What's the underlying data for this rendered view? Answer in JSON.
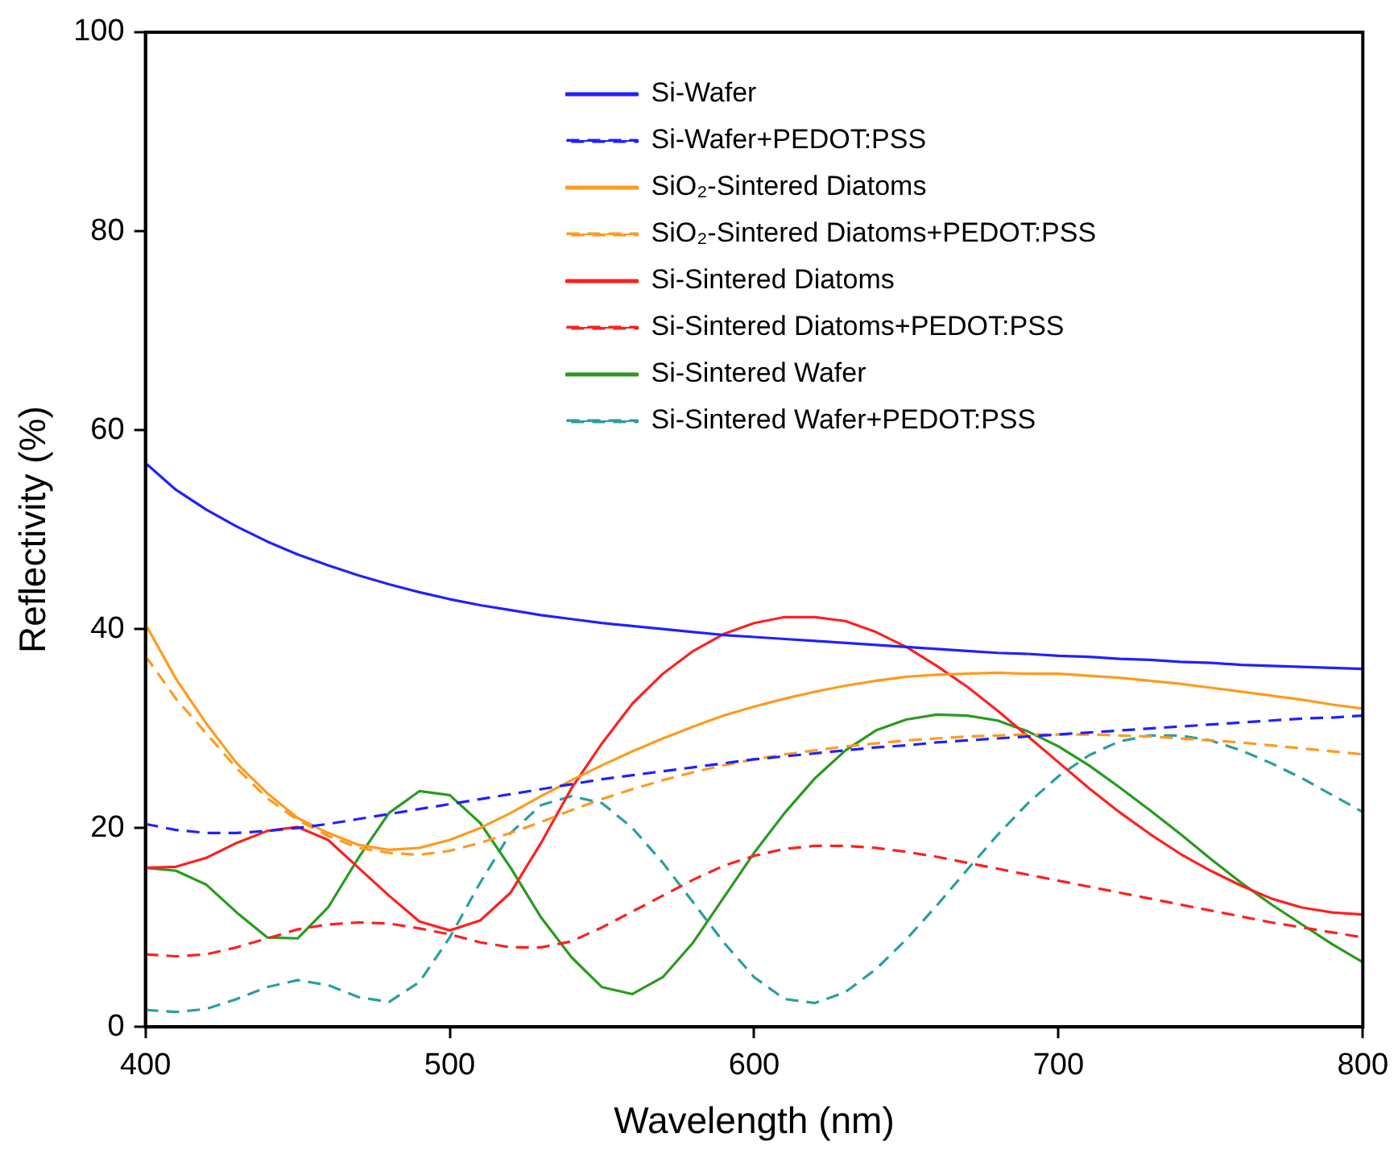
{
  "chart_data": {
    "type": "line",
    "xlabel": "Wavelength (nm)",
    "ylabel": "Reflectivity (%)",
    "xlim": [
      400,
      800
    ],
    "xticks": [
      400,
      500,
      600,
      700,
      800
    ],
    "ylim": [
      0,
      100
    ],
    "yticks": [
      0,
      20,
      40,
      60,
      80,
      100
    ],
    "grid": false,
    "legend": "top right",
    "marker": "none",
    "x": [
      400,
      410,
      420,
      430,
      440,
      450,
      460,
      470,
      480,
      490,
      500,
      510,
      520,
      530,
      540,
      550,
      560,
      570,
      580,
      590,
      600,
      610,
      620,
      630,
      640,
      650,
      660,
      670,
      680,
      690,
      700,
      710,
      720,
      730,
      740,
      750,
      760,
      770,
      780,
      790,
      800
    ],
    "series": [
      {
        "name": "Si-Wafer",
        "color": "#2020ff",
        "line_style": "solid",
        "values": [
          56.7,
          54,
          52,
          50.3,
          48.8,
          47.5,
          46.4,
          45.4,
          44.5,
          43.7,
          43.0,
          42.4,
          41.9,
          41.4,
          41.0,
          40.6,
          40.3,
          40.0,
          39.7,
          39.4,
          39.2,
          39.0,
          38.8,
          38.6,
          38.4,
          38.2,
          38.0,
          37.8,
          37.6,
          37.5,
          37.3,
          37.2,
          37.0,
          36.9,
          36.7,
          36.6,
          36.4,
          36.3,
          36.2,
          36.1,
          36.0
        ]
      },
      {
        "name": "Si-Wafer+PEDOT:PSS",
        "color": "#2020ff",
        "line_style": "dashed",
        "values": [
          20.4,
          19.8,
          19.5,
          19.5,
          19.7,
          20.0,
          20.4,
          20.9,
          21.4,
          21.9,
          22.4,
          22.9,
          23.4,
          23.9,
          24.4,
          24.9,
          25.3,
          25.7,
          26.1,
          26.5,
          26.9,
          27.2,
          27.5,
          27.8,
          28.1,
          28.3,
          28.6,
          28.8,
          29.0,
          29.2,
          29.4,
          29.6,
          29.8,
          30.0,
          30.2,
          30.4,
          30.6,
          30.8,
          31.0,
          31.1,
          31.3
        ]
      },
      {
        "name": "SiO₂-Sintered Diatoms",
        "color": "#ff9a1f",
        "line_style": "solid",
        "values": [
          40.5,
          35,
          30.5,
          26.5,
          23.5,
          21,
          19.5,
          18.3,
          17.8,
          18.0,
          18.8,
          20.0,
          21.5,
          23.2,
          24.8,
          26.3,
          27.7,
          29.0,
          30.2,
          31.3,
          32.2,
          33.0,
          33.7,
          34.3,
          34.8,
          35.2,
          35.4,
          35.5,
          35.6,
          35.5,
          35.5,
          35.3,
          35.1,
          34.8,
          34.5,
          34.1,
          33.7,
          33.3,
          32.9,
          32.4,
          32.0
        ]
      },
      {
        "name": "SiO₂-Sintered Diatoms+PEDOT:PSS",
        "color": "#ff9a1f",
        "line_style": "dashed",
        "values": [
          37.3,
          33,
          29.5,
          26,
          23,
          20.8,
          19.2,
          18.0,
          17.5,
          17.3,
          17.7,
          18.5,
          19.5,
          20.6,
          21.8,
          22.9,
          23.9,
          24.8,
          25.6,
          26.3,
          26.9,
          27.4,
          27.8,
          28.2,
          28.5,
          28.8,
          29.0,
          29.2,
          29.3,
          29.4,
          29.4,
          29.4,
          29.3,
          29.2,
          29.0,
          28.8,
          28.6,
          28.3,
          28.0,
          27.7,
          27.4
        ]
      },
      {
        "name": "Si-Sintered Diatoms",
        "color": "#ff2020",
        "line_style": "solid",
        "values": [
          16.0,
          16.1,
          17.0,
          18.5,
          19.7,
          20.1,
          18.8,
          16,
          13.2,
          10.6,
          9.7,
          10.7,
          13.5,
          18.5,
          24,
          28.5,
          32.5,
          35.5,
          37.8,
          39.5,
          40.6,
          41.2,
          41.2,
          40.8,
          39.7,
          38.2,
          36.3,
          34.2,
          31.8,
          29.2,
          26.6,
          24.0,
          21.6,
          19.4,
          17.4,
          15.7,
          14.2,
          12.9,
          12.0,
          11.5,
          11.3
        ]
      },
      {
        "name": "Si-Sintered Diatoms+PEDOT:PSS",
        "color": "#ff2020",
        "line_style": "dashed",
        "values": [
          7.3,
          7.1,
          7.3,
          8.0,
          8.9,
          9.8,
          10.3,
          10.5,
          10.4,
          9.9,
          9.3,
          8.5,
          8.0,
          8.0,
          8.6,
          10.0,
          11.6,
          13.2,
          14.8,
          16.2,
          17.2,
          17.9,
          18.2,
          18.2,
          18.0,
          17.6,
          17.1,
          16.5,
          15.9,
          15.3,
          14.7,
          14.1,
          13.5,
          12.9,
          12.3,
          11.7,
          11.1,
          10.5,
          10.0,
          9.5,
          9.0
        ]
      },
      {
        "name": "Si-Sintered Wafer",
        "color": "#2a9a20",
        "line_style": "solid",
        "values": [
          16.0,
          15.7,
          14.3,
          11.5,
          9.0,
          8.9,
          12.0,
          17,
          21.5,
          23.7,
          23.3,
          20.5,
          16.0,
          11.0,
          7.0,
          4.0,
          3.3,
          5.0,
          8.5,
          13.0,
          17.5,
          21.5,
          25.0,
          27.8,
          29.8,
          30.9,
          31.4,
          31.3,
          30.8,
          29.7,
          28.2,
          26.3,
          24.1,
          21.8,
          19.4,
          16.9,
          14.5,
          12.3,
          10.3,
          8.3,
          6.5
        ]
      },
      {
        "name": "Si-Sintered Wafer+PEDOT:PSS",
        "color": "#2a9e9e",
        "line_style": "dashed",
        "values": [
          1.7,
          1.5,
          1.8,
          2.8,
          4.0,
          4.7,
          4.2,
          3.0,
          2.5,
          4.5,
          9,
          14.5,
          19.5,
          22.3,
          23.2,
          22.5,
          20.0,
          16.5,
          12.5,
          8.5,
          5.0,
          2.8,
          2.4,
          3.5,
          5.8,
          8.8,
          12.2,
          15.8,
          19.3,
          22.5,
          25.2,
          27.3,
          28.7,
          29.3,
          29.3,
          28.8,
          27.8,
          26.5,
          25.0,
          23.3,
          21.6
        ]
      }
    ]
  }
}
